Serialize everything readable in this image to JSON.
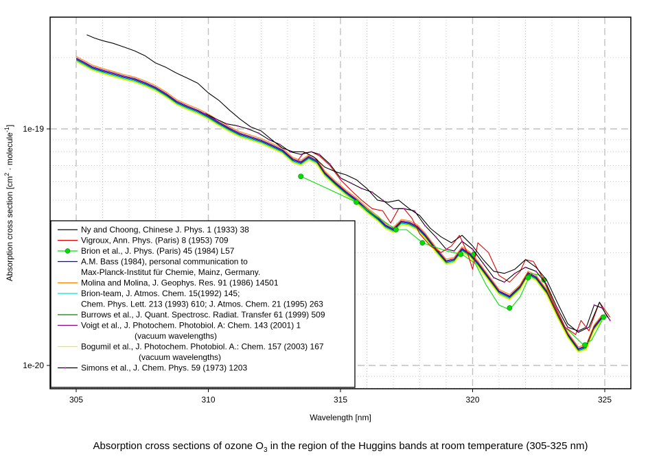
{
  "chart_data": {
    "type": "line",
    "title": "Absorption cross sections of ozone O3 in the region of the Huggins bands at room temperature (305-325 nm)",
    "title_parts": {
      "before_sub": "Absorption cross sections of ozone O",
      "sub": "3",
      "after_sub": " in the region of the Huggins bands at room temperature (305-325 nm)"
    },
    "xlabel": "Wavelength [nm]",
    "ylabel_parts": {
      "a": "Absorption cross section [cm",
      "sup1": "2",
      "b": " · molecule",
      "sup2": "-1",
      "c": "]"
    },
    "xlim": [
      304.0,
      326.0
    ],
    "ylim_log10": [
      -20.1,
      -18.54
    ],
    "yscale": "log",
    "x_ticks": [
      305,
      310,
      315,
      320,
      325
    ],
    "x_tick_labels": [
      "305",
      "310",
      "315",
      "320",
      "325"
    ],
    "y_ticks": [
      1e-19,
      1e-20
    ],
    "y_tick_labels": [
      "1e-19",
      "1e-20"
    ],
    "grid": true,
    "legend_position": "bottom-left",
    "series": [
      {
        "name": "Ny and Choong, Chinese J. Phys. 1 (1933) 38",
        "legend_lines": [
          "Ny and Choong, Chinese J. Phys. 1 (1933) 38"
        ],
        "color": "#000000",
        "marker": "none",
        "x": [
          305.4,
          305.7,
          306.0,
          306.4,
          306.8,
          307.2,
          307.6,
          308.0,
          308.4,
          308.8,
          309.2,
          309.6,
          310.0,
          310.4,
          310.8,
          311.2,
          311.6,
          312.0,
          312.4,
          312.8,
          313.2,
          313.6,
          314.0,
          314.4,
          314.8,
          315.2,
          315.6,
          316.0,
          316.4,
          316.8,
          317.2,
          317.6,
          318.0,
          318.4,
          318.8,
          319.2,
          319.6,
          320.0,
          320.4,
          320.8,
          321.2,
          321.6,
          322.0,
          322.4,
          322.8,
          323.2,
          323.6,
          324.0,
          324.4,
          324.8,
          325.1
        ],
        "y": [
          2.5e-19,
          2.42e-19,
          2.36e-19,
          2.3e-19,
          2.22e-19,
          2.14e-19,
          2.04e-19,
          1.9e-19,
          1.82e-19,
          1.72e-19,
          1.64e-19,
          1.56e-19,
          1.42e-19,
          1.32e-19,
          1.2e-19,
          1.1e-19,
          1.02e-19,
          9.8e-20,
          9e-20,
          8.3e-20,
          8e-20,
          8e-20,
          7.6e-20,
          6.9e-20,
          6.6e-20,
          6.4e-20,
          6.1e-20,
          5.6e-20,
          5e-20,
          4.9e-20,
          5e-20,
          4.6e-20,
          4.3e-20,
          3.8e-20,
          3.5e-20,
          3.3e-20,
          3.55e-20,
          3.2e-20,
          2.8e-20,
          2.5e-20,
          2.45e-20,
          2.55e-20,
          2.8e-20,
          2.6e-20,
          2.3e-20,
          1.85e-20,
          1.5e-20,
          1.38e-20,
          1.45e-20,
          1.85e-20,
          1.6e-20
        ]
      },
      {
        "name": "Vigroux, Ann. Phys. (Paris) 8 (1953) 709",
        "legend_lines": [
          "Vigroux, Ann. Phys. (Paris) 8 (1953) 709"
        ],
        "color": "#e00000",
        "marker": "none",
        "x": [
          313.4,
          313.6,
          313.9,
          314.2,
          314.6,
          315.0,
          315.4,
          315.8,
          316.2,
          316.6,
          316.9,
          317.2,
          317.4,
          317.7,
          318.0,
          318.4,
          318.8,
          319.2,
          319.5,
          319.8,
          320.0,
          320.2,
          320.6,
          321.0,
          321.4,
          321.8,
          322.0,
          322.3,
          322.7,
          323.1,
          323.5,
          323.9,
          324.1,
          324.4,
          324.8,
          325.2
        ],
        "y": [
          7.4e-20,
          7.9e-20,
          8e-20,
          7.7e-20,
          7e-20,
          6.1e-20,
          5.5e-20,
          5e-20,
          4.6e-20,
          4.5e-20,
          4e-20,
          4.6e-20,
          4.6e-20,
          4.2e-20,
          3.6e-20,
          3.2e-20,
          3e-20,
          3.2e-20,
          3.55e-20,
          3e-20,
          2.55e-20,
          3.3e-20,
          3e-20,
          2.4e-20,
          2.25e-20,
          2.5e-20,
          2.8e-20,
          2.75e-20,
          2.3e-20,
          1.8e-20,
          1.45e-20,
          1.35e-20,
          1.55e-20,
          1.4e-20,
          1.85e-20,
          1.6e-20
        ]
      },
      {
        "name": "Brion et al., J. Phys. (Paris) 45 (1984) L57",
        "legend_lines": [
          "Brion et al., J. Phys. (Paris) 45 (1984) L57"
        ],
        "color": "#00e000",
        "marker": "circle",
        "x": [
          313.5,
          314.5,
          315.6,
          316.2,
          317.1,
          317.5,
          318.1,
          319.0,
          319.6,
          320.1,
          320.5,
          321.0,
          321.4,
          321.8,
          322.2,
          322.6,
          323.0,
          323.5,
          324.2,
          324.5,
          324.9
        ],
        "y": [
          6.3e-20,
          5.6e-20,
          4.9e-20,
          4.4e-20,
          3.75e-20,
          3.75e-20,
          3.3e-20,
          3.05e-20,
          2.95e-20,
          2.7e-20,
          2.2e-20,
          1.8e-20,
          1.72e-20,
          1.95e-20,
          2.45e-20,
          2.4e-20,
          1.9e-20,
          1.45e-20,
          1.22e-20,
          1.28e-20,
          1.55e-20
        ],
        "points_x": [
          313.5,
          315.6,
          317.1,
          318.1,
          319.55,
          320.05,
          321.4,
          322.1,
          322.7,
          324.25,
          324.95
        ],
        "points_y": [
          6.3e-20,
          4.9e-20,
          3.75e-20,
          3.3e-20,
          2.95e-20,
          2.95e-20,
          1.75e-20,
          2.35e-20,
          2.3e-20,
          1.22e-20,
          1.6e-20
        ]
      },
      {
        "name": "A.M. Bass (1984), personal communication to Max-Planck-Institut für Chemie, Mainz, Germany.",
        "legend_lines": [
          "A.M. Bass (1984), personal communication to",
          "Max-Planck-Institut für Chemie, Mainz, Germany."
        ],
        "color": "#0000e0",
        "marker": "none",
        "offset": 0.0
      },
      {
        "name": "Molina and Molina, J. Geophys. Res. 91 (1986) 14501",
        "legend_lines": [
          "Molina and Molina, J. Geophys. Res. 91 (1986) 14501"
        ],
        "color": "#ff8000",
        "marker": "none",
        "offset": 0.01
      },
      {
        "name": "Brion-team, J. Atmos. Chem. 15(1992) 145; Chem. Phys. Lett. 213 (1993) 610; J. Atmos. Chem. 21 (1995) 263",
        "legend_lines": [
          "Brion-team, J. Atmos. Chem. 15(1992) 145;",
          "Chem. Phys. Lett. 213 (1993) 610; J. Atmos. Chem. 21 (1995) 263"
        ],
        "color": "#00e0e0",
        "marker": "none",
        "offset": -0.008
      },
      {
        "name": "Burrows et al., J. Quant. Spectrosc. Radiat. Transfer 61 (1999) 509",
        "legend_lines": [
          "Burrows et al., J. Quant. Spectrosc. Radiat. Transfer 61 (1999) 509"
        ],
        "color": "#008000",
        "marker": "none",
        "offset": -0.004
      },
      {
        "name": "Voigt et al., J. Photochem. Photobiol. A: Chem. 143 (2001) 1 (vacuum wavelengths)",
        "legend_lines": [
          "Voigt et al., J. Photochem. Photobiol. A: Chem. 143 (2001) 1",
          "(vacuum wavelengths)"
        ],
        "color": "#800080",
        "marker": "none",
        "offset": 0.004
      },
      {
        "name": "Bogumil et al., J. Photochem. Photobiol. A.: Chem. 157 (2003) 167 (vacuum wavelengths)",
        "legend_lines": [
          "Bogumil et al., J. Photochem. Photobiol. A.: Chem. 157 (2003) 167",
          "(vacuum wavelengths)"
        ],
        "color": "#f0f000",
        "marker": "none",
        "offset": -0.012
      },
      {
        "name": "Simons et al., J. Chem. Phys. 59 (1973) 1203",
        "legend_lines": [
          " Simons et al., J. Chem. Phys. 59 (1973) 1203"
        ],
        "color": "#000000",
        "marker_color": "#e000e0",
        "marker": "dots",
        "x": [
          309.9,
          310.3,
          310.7,
          311.1,
          311.5,
          311.9,
          312.3,
          312.7,
          313.1,
          313.5,
          313.9,
          314.2,
          314.6,
          315.0,
          315.4,
          315.8,
          316.2,
          316.6,
          317.0,
          317.4,
          317.8,
          318.2,
          318.6,
          319.0,
          319.3,
          319.6,
          320.0,
          320.4,
          320.8,
          321.2,
          321.6,
          322.0,
          322.4,
          322.8,
          323.2,
          323.6,
          324.0,
          324.3,
          324.6,
          324.9,
          325.2
        ],
        "y": [
          1.16e-19,
          1.1e-19,
          1.05e-19,
          1.03e-19,
          1e-19,
          9.6e-20,
          9e-20,
          8.6e-20,
          8e-20,
          7.8e-20,
          8e-20,
          7.8e-20,
          7.1e-20,
          6.2e-20,
          5.9e-20,
          5.6e-20,
          5.4e-20,
          5e-20,
          4.6e-20,
          4.6e-20,
          4.5e-20,
          3.9e-20,
          3.5e-20,
          3.1e-20,
          3.05e-20,
          3.35e-20,
          3.1e-20,
          2.7e-20,
          2.35e-20,
          2.25e-20,
          2.45e-20,
          2.6e-20,
          2.5e-20,
          2.2e-20,
          1.75e-20,
          1.45e-20,
          1.4e-20,
          1.45e-20,
          1.8e-20,
          1.75e-20,
          1.55e-20
        ]
      }
    ],
    "cluster_base": {
      "description": "shared spectral shape of the closely overlapping modern measurements (Bass, Molina, Brion-team, Burrows, Voigt, Bogumil); per-series 'offset' is a log10 shift",
      "x": [
        305.0,
        305.3,
        305.6,
        306.0,
        306.4,
        306.8,
        307.2,
        307.6,
        308.0,
        308.4,
        308.8,
        309.2,
        309.6,
        310.0,
        310.4,
        310.8,
        311.2,
        311.6,
        312.0,
        312.4,
        312.8,
        313.2,
        313.5,
        313.8,
        314.1,
        314.4,
        314.8,
        315.2,
        315.6,
        316.0,
        316.4,
        316.7,
        317.0,
        317.3,
        317.6,
        317.9,
        318.2,
        318.6,
        319.0,
        319.3,
        319.6,
        319.9,
        320.2,
        320.6,
        321.0,
        321.4,
        321.8,
        322.1,
        322.4,
        322.8,
        323.2,
        323.6,
        324.0,
        324.3,
        324.6,
        324.9
      ],
      "y": [
        1.98e-19,
        1.9e-19,
        1.82e-19,
        1.76e-19,
        1.71e-19,
        1.66e-19,
        1.62e-19,
        1.56e-19,
        1.49e-19,
        1.4e-19,
        1.3e-19,
        1.24e-19,
        1.19e-19,
        1.13e-19,
        1.06e-19,
        1e-19,
        9.5e-20,
        9.2e-20,
        8.9e-20,
        8.5e-20,
        8.1e-20,
        7.4e-20,
        7.2e-20,
        7.6e-20,
        7.3e-20,
        6.5e-20,
        5.9e-20,
        5.4e-20,
        5e-20,
        4.55e-20,
        4.2e-20,
        3.9e-20,
        3.75e-20,
        4.05e-20,
        4e-20,
        3.85e-20,
        3.55e-20,
        3.1e-20,
        2.75e-20,
        2.8e-20,
        3.1e-20,
        2.95e-20,
        2.7e-20,
        2.35e-20,
        2.05e-20,
        1.95e-20,
        2.15e-20,
        2.45e-20,
        2.35e-20,
        2.05e-20,
        1.65e-20,
        1.35e-20,
        1.17e-20,
        1.2e-20,
        1.45e-20,
        1.6e-20
      ]
    }
  }
}
